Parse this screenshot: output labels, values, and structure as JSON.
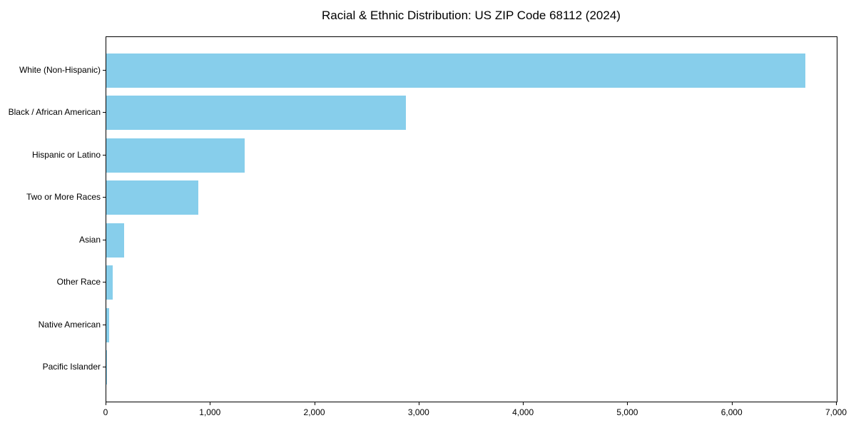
{
  "title": "Racial & Ethnic Distribution: US ZIP Code 68112 (2024)",
  "colors": {
    "bar": "#87CEEB",
    "axis": "#000000",
    "text": "#000000",
    "background": "#FFFFFF"
  },
  "chart_data": {
    "type": "bar",
    "orientation": "horizontal",
    "title": "Racial & Ethnic Distribution: US ZIP Code 68112 (2024)",
    "categories": [
      "White (Non-Hispanic)",
      "Black / African American",
      "Hispanic or Latino",
      "Two or More Races",
      "Asian",
      "Other Race",
      "Native American",
      "Pacific Islander"
    ],
    "values": [
      6700,
      2870,
      1325,
      885,
      170,
      60,
      25,
      5
    ],
    "xlabel": "",
    "ylabel": "",
    "xlim": [
      0,
      7000
    ],
    "xticks": [
      0,
      1000,
      2000,
      3000,
      4000,
      5000,
      6000,
      7000
    ],
    "xtick_labels": [
      "0",
      "1,000",
      "2,000",
      "3,000",
      "4,000",
      "5,000",
      "6,000",
      "7,000"
    ],
    "grid": false,
    "legend": null,
    "bar_color": "#87CEEB"
  }
}
